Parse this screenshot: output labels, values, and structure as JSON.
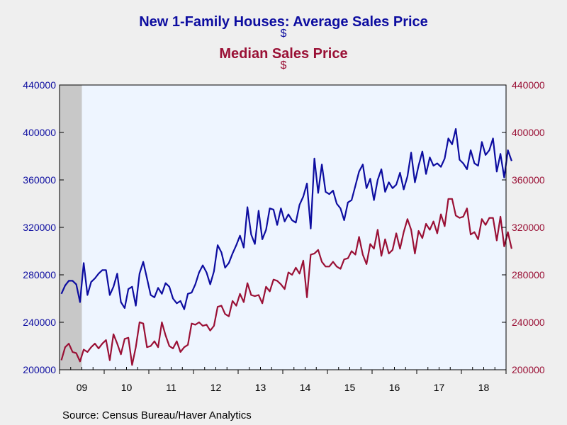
{
  "chart_data": {
    "type": "line",
    "title": "New 1-Family Houses: Average Sales Price",
    "title_unit": "$",
    "subtitle": "Median Sales Price",
    "subtitle_unit": "$",
    "source": "Source:  Census Bureau/Haver Analytics",
    "x_tick_labels": [
      "09",
      "10",
      "11",
      "12",
      "13",
      "14",
      "15",
      "16",
      "17",
      "18"
    ],
    "y_left": {
      "ticks": [
        "200000",
        "240000",
        "280000",
        "320000",
        "360000",
        "400000",
        "440000"
      ],
      "ylim": [
        200000,
        440000
      ],
      "color": "#0d0da0"
    },
    "y_right": {
      "ticks": [
        "200000",
        "240000",
        "280000",
        "320000",
        "360000",
        "400000",
        "440000"
      ],
      "ylim": [
        200000,
        440000
      ],
      "color": "#9a1035"
    },
    "x_range": [
      "2009-01",
      "2018-12"
    ],
    "recession_shading": [
      "2009-01",
      "2009-06"
    ],
    "grid": false,
    "colors": {
      "average": "#0d0da0",
      "median": "#9a1035",
      "plot_bg": "#eef5ff",
      "recession": "#c8c8c8"
    },
    "series": [
      {
        "key": "average",
        "start": "2009-01",
        "values": [
          264000,
          271000,
          275000,
          275000,
          272000,
          257000,
          290000,
          263000,
          274000,
          277000,
          281000,
          284000,
          284000,
          263000,
          270000,
          281000,
          257000,
          252000,
          268000,
          270000,
          254000,
          281000,
          291000,
          277000,
          263000,
          261000,
          269000,
          264000,
          273000,
          270000,
          260000,
          256000,
          258000,
          251000,
          264000,
          265000,
          272000,
          282000,
          288000,
          282000,
          272000,
          283000,
          305000,
          299000,
          286000,
          290000,
          298000,
          305000,
          313000,
          303000,
          337000,
          314000,
          306000,
          334000,
          310000,
          318000,
          336000,
          335000,
          322000,
          336000,
          325000,
          331000,
          326000,
          324000,
          339000,
          346000,
          357000,
          319000,
          378000,
          349000,
          373000,
          350000,
          348000,
          351000,
          340000,
          336000,
          326000,
          341000,
          343000,
          355000,
          367000,
          373000,
          353000,
          361000,
          343000,
          360000,
          369000,
          350000,
          358000,
          353000,
          356000,
          366000,
          352000,
          363000,
          383000,
          358000,
          372000,
          384000,
          365000,
          379000,
          372000,
          374000,
          371000,
          378000,
          395000,
          390000,
          403000,
          377000,
          374000,
          369000,
          385000,
          374000,
          372000,
          392000,
          381000,
          385000,
          395000,
          367000,
          382000,
          362000,
          385000,
          376000
        ]
      },
      {
        "key": "median",
        "start": "2009-01",
        "values": [
          208000,
          219000,
          222000,
          215000,
          214000,
          207000,
          217000,
          215000,
          219000,
          222000,
          218000,
          222000,
          225000,
          208000,
          230000,
          222000,
          213000,
          226000,
          227000,
          204000,
          219000,
          240000,
          239000,
          219000,
          220000,
          224000,
          219000,
          240000,
          229000,
          220000,
          218000,
          224000,
          215000,
          219000,
          221000,
          239000,
          238000,
          240000,
          237000,
          238000,
          233000,
          237000,
          253000,
          254000,
          247000,
          245000,
          258000,
          254000,
          264000,
          257000,
          273000,
          263000,
          262000,
          263000,
          256000,
          270000,
          266000,
          276000,
          275000,
          272000,
          268000,
          282000,
          280000,
          286000,
          281000,
          292000,
          261000,
          297000,
          298000,
          301000,
          291000,
          287000,
          287000,
          291000,
          287000,
          285000,
          293000,
          294000,
          300000,
          297000,
          312000,
          297000,
          289000,
          306000,
          302000,
          318000,
          296000,
          310000,
          298000,
          301000,
          315000,
          302000,
          316000,
          327000,
          318000,
          298000,
          317000,
          311000,
          323000,
          318000,
          325000,
          315000,
          331000,
          321000,
          344000,
          344000,
          330000,
          328000,
          329000,
          336000,
          314000,
          316000,
          310000,
          327000,
          322000,
          328000,
          328000,
          309000,
          329000,
          304000,
          316000,
          302000
        ]
      }
    ]
  }
}
